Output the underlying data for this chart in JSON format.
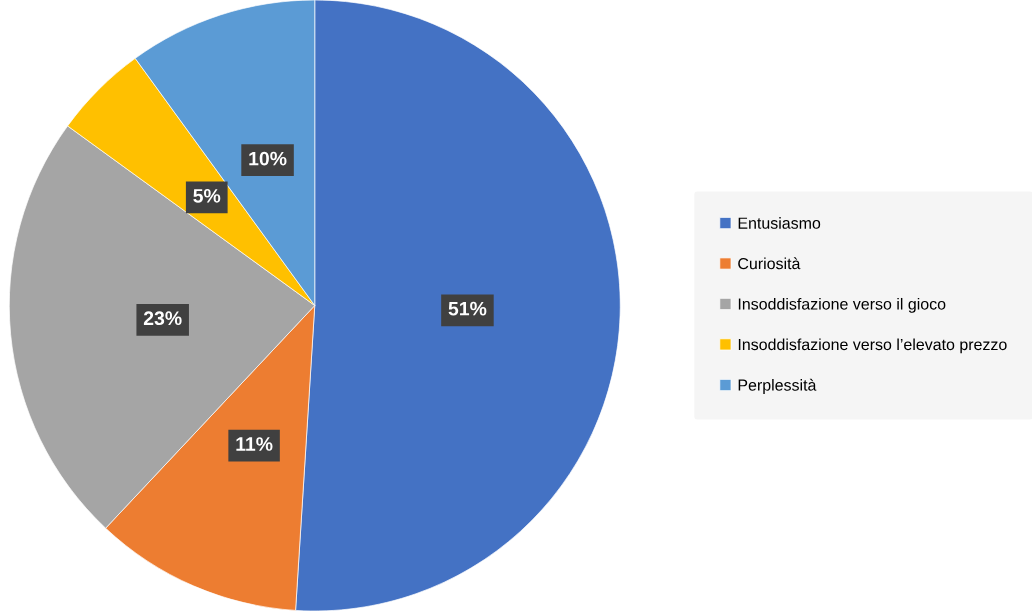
{
  "chart_data": {
    "type": "pie",
    "categories": [
      "Entusiasmo",
      "Curiosità",
      "Insoddisfazione verso il gioco",
      "Insoddisfazione verso l’elevato prezzo",
      "Perplessità"
    ],
    "values": [
      51,
      11,
      23,
      5,
      10
    ],
    "colors": [
      "#4472c4",
      "#ed7d31",
      "#a5a5a5",
      "#ffc000",
      "#5b9bd5"
    ],
    "value_labels": [
      "51%",
      "11%",
      "23%",
      "5%",
      "10%"
    ],
    "legend": "right"
  }
}
